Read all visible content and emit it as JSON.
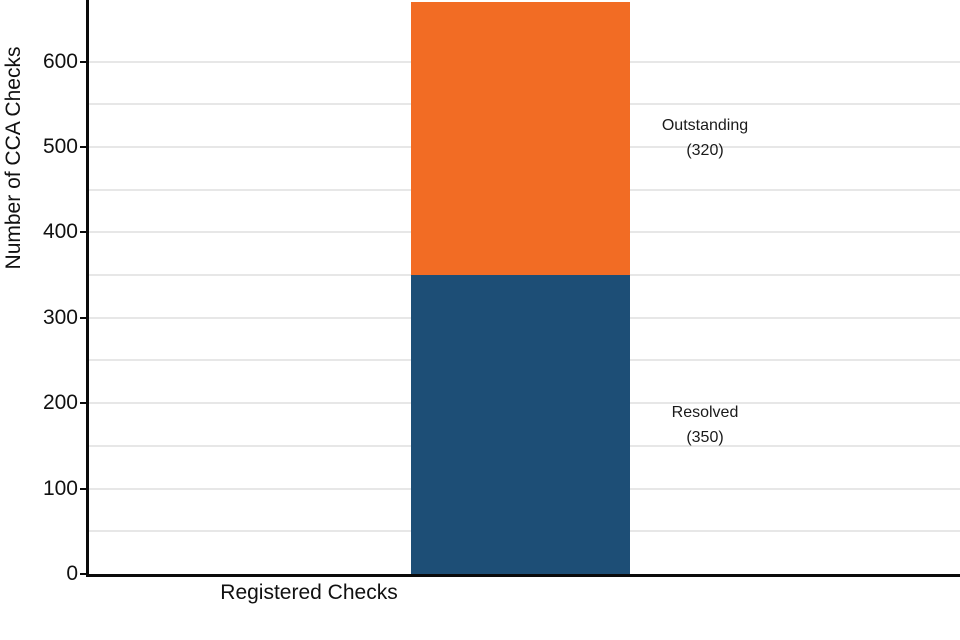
{
  "chart_data": {
    "type": "bar",
    "stacked": true,
    "categories": [
      "Registered Checks"
    ],
    "series": [
      {
        "name": "Resolved",
        "values": [
          350
        ],
        "color": "#1d4e76"
      },
      {
        "name": "Outstanding",
        "values": [
          320
        ],
        "color": "#f26c24"
      }
    ],
    "title": "",
    "xlabel": "Registered Checks",
    "ylabel": "Number of CCA Checks",
    "ylim": [
      0,
      672
    ],
    "yticks": [
      0,
      100,
      200,
      300,
      400,
      500,
      600
    ],
    "grid": true,
    "grid_interval": 50,
    "legend_position": "none",
    "annotations": [
      {
        "label": "Outstanding",
        "value_text": "(320)"
      },
      {
        "label": "Resolved",
        "value_text": "(350)"
      }
    ]
  }
}
